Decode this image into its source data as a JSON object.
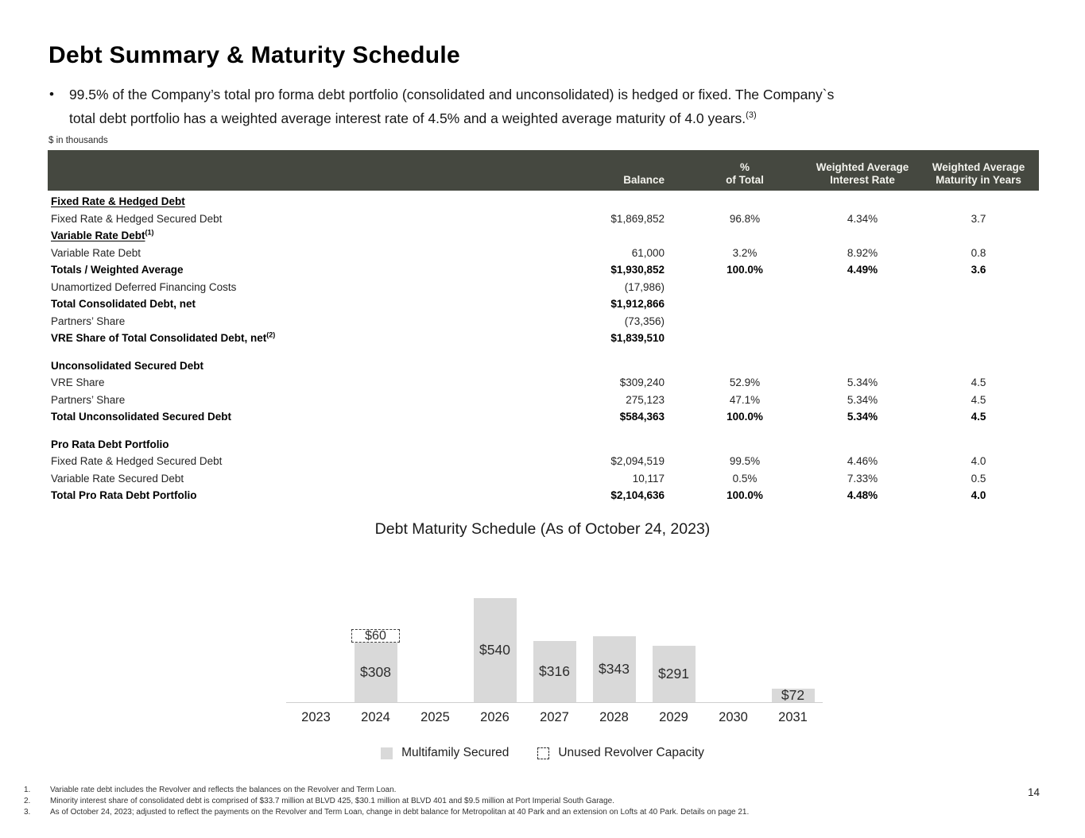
{
  "title": "Debt Summary & Maturity Schedule",
  "bullet": {
    "text": "99.5% of the Company’s total pro forma debt portfolio (consolidated and unconsolidated) is hedged or fixed. The Company`s\ntotal debt portfolio has a weighted average interest rate of 4.5% and a weighted average maturity of 4.0 years.",
    "footnote_ref": "(3)"
  },
  "units_note": "$ in thousands",
  "table": {
    "header": {
      "bg_color": "#454840",
      "columns": [
        "",
        "Balance",
        "%\nof Total",
        "Weighted Average\nInterest Rate",
        "Weighted Average\nMaturity in Years"
      ]
    },
    "rows": [
      {
        "label": "Fixed Rate & Hedged Debt",
        "sup": "",
        "balance": "",
        "pct": "",
        "rate": "",
        "maturity": "",
        "bold": true,
        "underline": true
      },
      {
        "label": "Fixed Rate & Hedged Secured Debt",
        "sup": "",
        "balance": "$1,869,852",
        "pct": "96.8%",
        "rate": "4.34%",
        "maturity": "3.7"
      },
      {
        "label": "Variable Rate Debt",
        "sup": "(1)",
        "balance": "",
        "pct": "",
        "rate": "",
        "maturity": "",
        "bold": true,
        "underline": true
      },
      {
        "label": "Variable Rate Debt",
        "sup": "",
        "balance": "61,000",
        "pct": "3.2%",
        "rate": "8.92%",
        "maturity": "0.8"
      },
      {
        "label": "Totals / Weighted Average",
        "sup": "",
        "balance": "$1,930,852",
        "pct": "100.0%",
        "rate": "4.49%",
        "maturity": "3.6",
        "bold": true
      },
      {
        "label": "Unamortized Deferred Financing Costs",
        "sup": "",
        "balance": "(17,986)",
        "pct": "",
        "rate": "",
        "maturity": ""
      },
      {
        "label": "Total Consolidated Debt, net",
        "sup": "",
        "balance": "$1,912,866",
        "pct": "",
        "rate": "",
        "maturity": "",
        "bold": true
      },
      {
        "label": "Partners’ Share",
        "sup": "",
        "balance": "(73,356)",
        "pct": "",
        "rate": "",
        "maturity": ""
      },
      {
        "label": "VRE Share of Total Consolidated Debt, net",
        "sup": "(2)",
        "balance": "$1,839,510",
        "pct": "",
        "rate": "",
        "maturity": "",
        "bold": true
      },
      {
        "spacer": true
      },
      {
        "label": "Unconsolidated Secured Debt",
        "sup": "",
        "balance": "",
        "pct": "",
        "rate": "",
        "maturity": "",
        "bold": true
      },
      {
        "label": "VRE Share",
        "sup": "",
        "balance": "$309,240",
        "pct": "52.9%",
        "rate": "5.34%",
        "maturity": "4.5"
      },
      {
        "label": "Partners’ Share",
        "sup": "",
        "balance": "275,123",
        "pct": "47.1%",
        "rate": "5.34%",
        "maturity": "4.5"
      },
      {
        "label": "Total Unconsolidated Secured Debt",
        "sup": "",
        "balance": "$584,363",
        "pct": "100.0%",
        "rate": "5.34%",
        "maturity": "4.5",
        "bold": true
      },
      {
        "spacer": true
      },
      {
        "label": "Pro Rata Debt Portfolio",
        "sup": "",
        "balance": "",
        "pct": "",
        "rate": "",
        "maturity": "",
        "bold": true
      },
      {
        "label": "Fixed Rate & Hedged Secured Debt",
        "sup": "",
        "balance": "$2,094,519",
        "pct": "99.5%",
        "rate": "4.46%",
        "maturity": "4.0"
      },
      {
        "label": "Variable Rate Secured Debt",
        "sup": "",
        "balance": "10,117",
        "pct": "0.5%",
        "rate": "7.33%",
        "maturity": "0.5"
      },
      {
        "label": "Total Pro Rata Debt Portfolio",
        "sup": "",
        "balance": "$2,104,636",
        "pct": "100.0%",
        "rate": "4.48%",
        "maturity": "4.0",
        "bold": true
      }
    ]
  },
  "chart_data": {
    "type": "bar",
    "title": "Debt Maturity Schedule (As of October 24, 2023)",
    "categories": [
      "2023",
      "2024",
      "2025",
      "2026",
      "2027",
      "2028",
      "2029",
      "2030",
      "2031"
    ],
    "series": [
      {
        "name": "Multifamily Secured",
        "values": [
          0,
          308,
          0,
          540,
          316,
          343,
          291,
          0,
          72
        ],
        "color": "#d9d9d9",
        "style": "solid"
      },
      {
        "name": "Unused Revolver Capacity",
        "values": [
          0,
          60,
          0,
          0,
          0,
          0,
          0,
          0,
          0
        ],
        "color": "#ffffff",
        "style": "dashed-outline"
      }
    ],
    "bar_labels": [
      "",
      "$308",
      "",
      "$540",
      "$316",
      "$343",
      "$291",
      "",
      "$72"
    ],
    "revolver_labels": [
      "",
      "$60",
      "",
      "",
      "",
      "",
      "",
      "",
      ""
    ],
    "legend_position": "bottom",
    "grid": false,
    "value_axis_shown": false,
    "max_value": 540
  },
  "footnotes": {
    "items": [
      {
        "num": "1.",
        "text": "Variable rate debt includes the Revolver and reflects the balances on the Revolver and Term Loan."
      },
      {
        "num": "2.",
        "text": "Minority interest share of consolidated debt is comprised of $33.7 million at BLVD 425, $30.1 million at BLVD 401 and $9.5 million at Port Imperial South Garage."
      },
      {
        "num": "3.",
        "text": "As of October 24, 2023; adjusted to reflect the payments on the Revolver and Term Loan, change in debt balance for Metropolitan at 40 Park and an extension on Lofts at 40 Park. Details on page 21."
      }
    ]
  },
  "page": {
    "number": "14"
  }
}
